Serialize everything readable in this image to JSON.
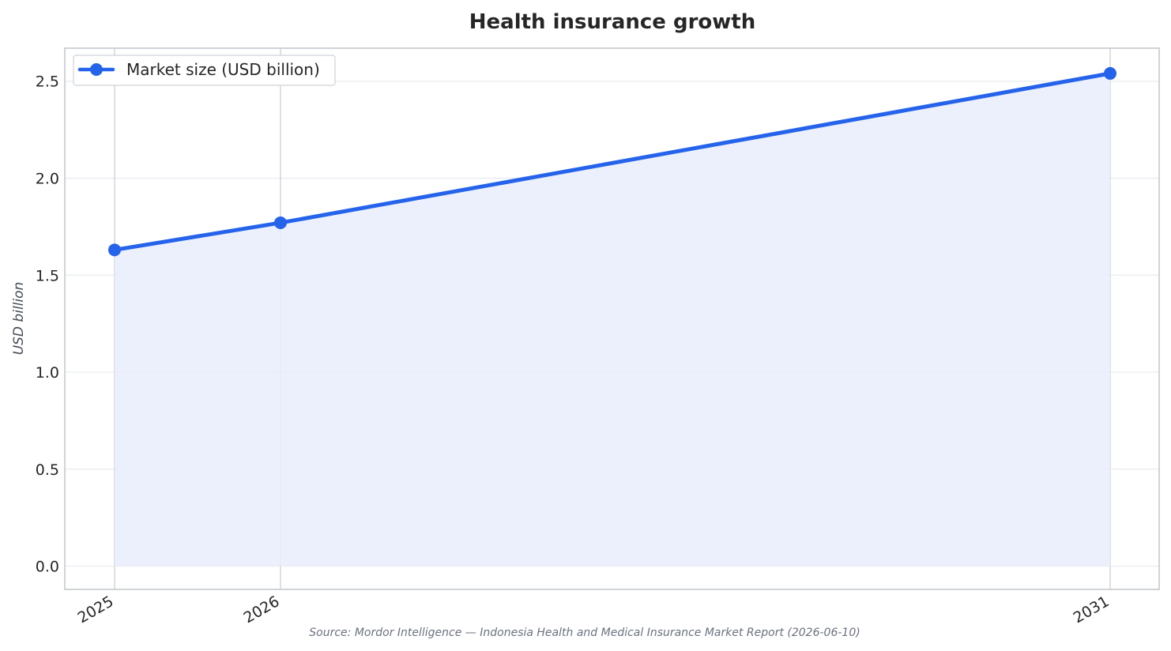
{
  "chart_data": {
    "type": "line",
    "title": "Health insurance growth",
    "xlabel": "",
    "ylabel": "USD billion",
    "categories": [
      "2025",
      "2026",
      "2031"
    ],
    "x": [
      2025,
      2026,
      2031
    ],
    "series": [
      {
        "name": "Market size (USD billion)",
        "values": [
          1.63,
          1.77,
          2.54
        ],
        "color": "#2563eb",
        "fill_color": "#e8edfb"
      }
    ],
    "ylim": [
      -0.12,
      2.67
    ],
    "yticks": [
      0.0,
      0.5,
      1.0,
      1.5,
      2.0,
      2.5
    ],
    "ytick_labels": [
      "0.0",
      "0.5",
      "1.0",
      "1.5",
      "2.0",
      "2.5"
    ],
    "grid": true,
    "legend_position": "top-left",
    "area_fill": true,
    "source": "Source: Mordor Intelligence — Indonesia Health and Medical Insurance Market Report (2026-06-10)"
  }
}
